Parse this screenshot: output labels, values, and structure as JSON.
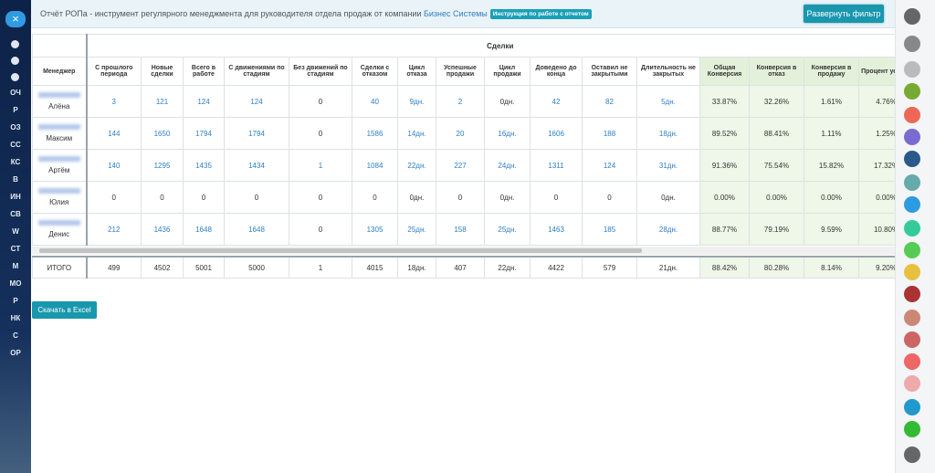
{
  "header": {
    "title": "Отчёт РОПа - инструмент регулярного менеджмента для руководителя отдела продаж от компании",
    "company": "Бизнес Системы",
    "instruction": "Инструкция по работе с отчетом",
    "button": "Развернуть фильтр"
  },
  "sidebar": {
    "items": [
      "ОЧ",
      "Р",
      "ОЗ",
      "СС",
      "КС",
      "В",
      "ИН",
      "СВ",
      "W",
      "СТ",
      "М",
      "МО",
      "Р",
      "НК",
      "С",
      "OP"
    ]
  },
  "table": {
    "group": "Сделки",
    "columns": [
      "Менеджер",
      "С прошлого периода",
      "Новые сделки",
      "Всего в работе",
      "С движениями по стадиям",
      "Без движений по стадиям",
      "Сделки с отказом",
      "Цикл отказа",
      "Успешные продажи",
      "Цикл продажи",
      "Доведено до конца",
      "Оставил не закрытыми",
      "Длительность не закрытых",
      "Общая Конверсия",
      "Конверсия в отказ",
      "Конверсия в продажу",
      "Процент успеха"
    ],
    "rows": [
      {
        "name": "Алёна",
        "cells": [
          "3",
          "121",
          "124",
          "124",
          "0",
          "40",
          "9дн.",
          "2",
          "0дн.",
          "42",
          "82",
          "5дн.",
          "33.87%",
          "32.26%",
          "1.61%",
          "4.76%"
        ]
      },
      {
        "name": "Максим",
        "cells": [
          "144",
          "1650",
          "1794",
          "1794",
          "0",
          "1586",
          "14дн.",
          "20",
          "16дн.",
          "1606",
          "188",
          "18дн.",
          "89.52%",
          "88.41%",
          "1.11%",
          "1.25%"
        ]
      },
      {
        "name": "Артём",
        "cells": [
          "140",
          "1295",
          "1435",
          "1434",
          "1",
          "1084",
          "22дн.",
          "227",
          "24дн.",
          "1311",
          "124",
          "31дн.",
          "91.36%",
          "75.54%",
          "15.82%",
          "17.32%"
        ]
      },
      {
        "name": "Юлия",
        "cells": [
          "0",
          "0",
          "0",
          "0",
          "0",
          "0",
          "0дн.",
          "0",
          "0дн.",
          "0",
          "0",
          "0дн.",
          "0.00%",
          "0.00%",
          "0.00%",
          "0.00%"
        ]
      },
      {
        "name": "Денис",
        "cells": [
          "212",
          "1436",
          "1648",
          "1648",
          "0",
          "1305",
          "25дн.",
          "158",
          "25дн.",
          "1463",
          "185",
          "28дн.",
          "88.77%",
          "79.19%",
          "9.59%",
          "10.80%"
        ]
      }
    ],
    "total": {
      "label": "ИТОГО",
      "cells": [
        "499",
        "4502",
        "5001",
        "5000",
        "1",
        "4015",
        "18дн.",
        "407",
        "22дн.",
        "4422",
        "579",
        "21дн.",
        "88.42%",
        "80.28%",
        "8.14%",
        "9.20%"
      ]
    }
  },
  "download": "Скачать в Excel"
}
